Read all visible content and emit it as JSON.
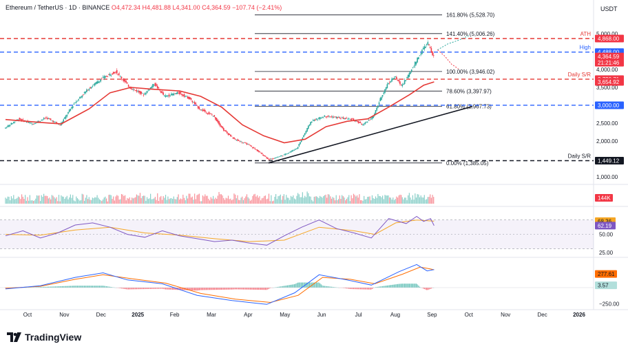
{
  "header": {
    "symbol": "Ethereum / TetherUS · 1D · BINANCE",
    "open": "O4,472.34",
    "high": "H4,481.88",
    "low": "L4,341.00",
    "close": "C4,364.59",
    "change": "−107.74 (−2.41%)"
  },
  "currency": "USDT",
  "branding": {
    "name": "TradingView"
  },
  "colors": {
    "up": "#26a69a",
    "down": "#f23645",
    "ma": "#e53935",
    "res_line": "#e53935",
    "sup_line": "#2962ff",
    "trend": "#131722",
    "rsi": "#7e57c2",
    "rsi_ma": "#f5a623",
    "macd": "#2962ff",
    "signal": "#ff6d00"
  },
  "chart_data": {
    "type": "line",
    "timeframe": "1D",
    "x_axis": {
      "tick_labels": [
        "Oct",
        "Nov",
        "Dec",
        "2025",
        "Feb",
        "Mar",
        "Apr",
        "May",
        "Jun",
        "Jul",
        "Aug",
        "Sep",
        "Oct",
        "Nov",
        "Dec",
        "2026"
      ]
    },
    "price_axis": {
      "tick_labels": [
        "5,000.00",
        "4,500.00",
        "4,000.00",
        "3,500.00",
        "3,000.00",
        "2,500.00",
        "2,000.00",
        "1,500.00",
        "1,000.00"
      ],
      "ylim": [
        900,
        5600
      ]
    },
    "price_series": [
      {
        "m": 0,
        "v": 2350
      },
      {
        "m": 0.4,
        "v": 2620
      },
      {
        "m": 0.8,
        "v": 2480
      },
      {
        "m": 1.2,
        "v": 2650
      },
      {
        "m": 1.6,
        "v": 2450
      },
      {
        "m": 2.0,
        "v": 3050
      },
      {
        "m": 2.4,
        "v": 3450
      },
      {
        "m": 2.8,
        "v": 3750
      },
      {
        "m": 3.2,
        "v": 3950
      },
      {
        "m": 3.6,
        "v": 3500
      },
      {
        "m": 4.0,
        "v": 3300
      },
      {
        "m": 4.3,
        "v": 3600
      },
      {
        "m": 4.6,
        "v": 3250
      },
      {
        "m": 5.0,
        "v": 3350
      },
      {
        "m": 5.3,
        "v": 3200
      },
      {
        "m": 5.6,
        "v": 2900
      },
      {
        "m": 6.0,
        "v": 2700
      },
      {
        "m": 6.3,
        "v": 2300
      },
      {
        "m": 6.6,
        "v": 2050
      },
      {
        "m": 7.0,
        "v": 1900
      },
      {
        "m": 7.3,
        "v": 1700
      },
      {
        "m": 7.6,
        "v": 1480
      },
      {
        "m": 8.0,
        "v": 1600
      },
      {
        "m": 8.4,
        "v": 1800
      },
      {
        "m": 8.8,
        "v": 2550
      },
      {
        "m": 9.2,
        "v": 2700
      },
      {
        "m": 9.6,
        "v": 2650
      },
      {
        "m": 10.0,
        "v": 2600
      },
      {
        "m": 10.3,
        "v": 2450
      },
      {
        "m": 10.6,
        "v": 2700
      },
      {
        "m": 10.8,
        "v": 3200
      },
      {
        "m": 11.0,
        "v": 3600
      },
      {
        "m": 11.2,
        "v": 3800
      },
      {
        "m": 11.4,
        "v": 3550
      },
      {
        "m": 11.6,
        "v": 3850
      },
      {
        "m": 11.8,
        "v": 4200
      },
      {
        "m": 12.0,
        "v": 4550
      },
      {
        "m": 12.15,
        "v": 4750
      },
      {
        "m": 12.3,
        "v": 4364.59
      }
    ],
    "moving_average": [
      {
        "m": 0,
        "v": 2600
      },
      {
        "m": 1.0,
        "v": 2520
      },
      {
        "m": 1.6,
        "v": 2480
      },
      {
        "m": 2.4,
        "v": 2900
      },
      {
        "m": 3.0,
        "v": 3350
      },
      {
        "m": 3.6,
        "v": 3500
      },
      {
        "m": 4.2,
        "v": 3450
      },
      {
        "m": 5.0,
        "v": 3400
      },
      {
        "m": 5.6,
        "v": 3250
      },
      {
        "m": 6.2,
        "v": 2950
      },
      {
        "m": 6.8,
        "v": 2450
      },
      {
        "m": 7.4,
        "v": 2150
      },
      {
        "m": 8.0,
        "v": 1950
      },
      {
        "m": 8.6,
        "v": 2050
      },
      {
        "m": 9.2,
        "v": 2400
      },
      {
        "m": 9.8,
        "v": 2550
      },
      {
        "m": 10.4,
        "v": 2620
      },
      {
        "m": 11.0,
        "v": 2950
      },
      {
        "m": 11.6,
        "v": 3300
      },
      {
        "m": 12.0,
        "v": 3560
      },
      {
        "m": 12.3,
        "v": 3654.92
      }
    ],
    "projection_up": [
      {
        "m": 12.4,
        "v": 4550
      },
      {
        "m": 12.7,
        "v": 4720
      },
      {
        "m": 13.0,
        "v": 4820
      },
      {
        "m": 13.3,
        "v": 4950
      }
    ],
    "projection_down": [
      {
        "m": 12.4,
        "v": 4550
      },
      {
        "m": 12.6,
        "v": 4380
      },
      {
        "m": 12.8,
        "v": 4150
      },
      {
        "m": 13.0,
        "v": 4020
      }
    ],
    "trendline": [
      {
        "m": 7.55,
        "v": 1385
      },
      {
        "m": 13.4,
        "v": 2967
      }
    ],
    "fibonacci": [
      {
        "label": "161.80% (5,528.70)",
        "v": 5528.7
      },
      {
        "label": "141.40% (5,006.26)",
        "v": 5006.26
      },
      {
        "label": "100.00% (3,946.02)",
        "v": 3946.02
      },
      {
        "label": "78.60% (3,397.97)",
        "v": 3397.97
      },
      {
        "label": "61.80% (2,967.73)",
        "v": 2967.73
      },
      {
        "label": "0.00% (1,385.05)",
        "v": 1385.05
      }
    ],
    "levels": [
      {
        "label": "ATH",
        "v": 4868,
        "color": "#e53935",
        "style": "dashed"
      },
      {
        "label": "High",
        "v": 4488,
        "color": "#2962ff",
        "style": "dashed"
      },
      {
        "label": "Daily S/R",
        "v": 3730.71,
        "color": "#e53935",
        "style": "dashed"
      },
      {
        "label": "",
        "v": 3000,
        "color": "#2962ff",
        "style": "dashed"
      },
      {
        "label": "Daily S/R",
        "v": 1449.12,
        "color": "#131722",
        "style": "dashed"
      }
    ],
    "price_badges": [
      {
        "text": "4,868.00",
        "v": 4868,
        "bg": "#f23645",
        "fg": "#ffffff"
      },
      {
        "text": "4,488.00",
        "v": 4488,
        "bg": "#2962ff",
        "fg": "#ffffff"
      },
      {
        "text": "4,364.59",
        "v": 4364.59,
        "bg": "#f23645",
        "fg": "#ffffff",
        "sub": "21:21:46"
      },
      {
        "text": "3,730.71",
        "v": 3730.71,
        "bg": "#f23645",
        "fg": "#ffffff"
      },
      {
        "text": "3,654.92",
        "v": 3654.92,
        "bg": "#f23645",
        "fg": "#ffffff"
      },
      {
        "text": "3,000.00",
        "v": 3000,
        "bg": "#2962ff",
        "fg": "#ffffff"
      },
      {
        "text": "1,449.12",
        "v": 1449.12,
        "bg": "#131722",
        "fg": "#ffffff"
      }
    ],
    "volume": {
      "badge": "144K"
    },
    "rsi": {
      "ylim": [
        20,
        85
      ],
      "bands": [
        70,
        30
      ],
      "tick_labels": [
        {
          "text": "50.00",
          "v": 50
        },
        {
          "text": "25.00",
          "v": 25
        }
      ],
      "badges": [
        {
          "text": "68.36",
          "v": 68.36,
          "bg": "#f5a623",
          "fg": "#131722"
        },
        {
          "text": "62.19",
          "v": 62.19,
          "bg": "#7e57c2",
          "fg": "#ffffff"
        }
      ],
      "series": [
        {
          "m": 0,
          "v": 48
        },
        {
          "m": 0.5,
          "v": 55
        },
        {
          "m": 1.0,
          "v": 45
        },
        {
          "m": 1.5,
          "v": 52
        },
        {
          "m": 2.0,
          "v": 63
        },
        {
          "m": 2.5,
          "v": 66
        },
        {
          "m": 3.0,
          "v": 60
        },
        {
          "m": 3.5,
          "v": 50
        },
        {
          "m": 4.0,
          "v": 46
        },
        {
          "m": 4.5,
          "v": 55
        },
        {
          "m": 5.0,
          "v": 48
        },
        {
          "m": 5.5,
          "v": 44
        },
        {
          "m": 6.0,
          "v": 40
        },
        {
          "m": 6.5,
          "v": 42
        },
        {
          "m": 7.0,
          "v": 38
        },
        {
          "m": 7.5,
          "v": 35
        },
        {
          "m": 8.0,
          "v": 48
        },
        {
          "m": 8.5,
          "v": 60
        },
        {
          "m": 9.0,
          "v": 70
        },
        {
          "m": 9.5,
          "v": 58
        },
        {
          "m": 10.0,
          "v": 52
        },
        {
          "m": 10.5,
          "v": 45
        },
        {
          "m": 11.0,
          "v": 72
        },
        {
          "m": 11.5,
          "v": 65
        },
        {
          "m": 11.8,
          "v": 75
        },
        {
          "m": 12.0,
          "v": 68
        },
        {
          "m": 12.2,
          "v": 72
        },
        {
          "m": 12.3,
          "v": 62.19
        }
      ],
      "ma": [
        {
          "m": 0,
          "v": 50
        },
        {
          "m": 1.0,
          "v": 49
        },
        {
          "m": 2.0,
          "v": 56
        },
        {
          "m": 3.0,
          "v": 60
        },
        {
          "m": 4.0,
          "v": 52
        },
        {
          "m": 5.0,
          "v": 49
        },
        {
          "m": 6.0,
          "v": 44
        },
        {
          "m": 7.0,
          "v": 40
        },
        {
          "m": 8.0,
          "v": 42
        },
        {
          "m": 9.0,
          "v": 60
        },
        {
          "m": 10.0,
          "v": 55
        },
        {
          "m": 10.6,
          "v": 50
        },
        {
          "m": 11.2,
          "v": 66
        },
        {
          "m": 11.8,
          "v": 70
        },
        {
          "m": 12.3,
          "v": 68.36
        }
      ]
    },
    "macd": {
      "ylim": [
        -300,
        450
      ],
      "tick_labels": [
        {
          "text": "−250.00",
          "v": -250
        }
      ],
      "badges": [
        {
          "text": "277.61",
          "v": 277.61,
          "bg": "#ff6d00",
          "fg": "#131722"
        },
        {
          "text": "3.57",
          "v": 3.57,
          "bg": "#b2dfdb",
          "fg": "#131722"
        }
      ],
      "macd_line": [
        {
          "m": 0,
          "v": -20
        },
        {
          "m": 1.0,
          "v": 30
        },
        {
          "m": 2.0,
          "v": 160
        },
        {
          "m": 2.8,
          "v": 230
        },
        {
          "m": 3.5,
          "v": 120
        },
        {
          "m": 4.5,
          "v": 60
        },
        {
          "m": 5.5,
          "v": -120
        },
        {
          "m": 6.5,
          "v": -200
        },
        {
          "m": 7.5,
          "v": -260
        },
        {
          "m": 8.3,
          "v": -80
        },
        {
          "m": 9.0,
          "v": 200
        },
        {
          "m": 9.8,
          "v": 120
        },
        {
          "m": 10.5,
          "v": 40
        },
        {
          "m": 11.3,
          "v": 250
        },
        {
          "m": 11.8,
          "v": 360
        },
        {
          "m": 12.1,
          "v": 260
        },
        {
          "m": 12.3,
          "v": 281
        }
      ],
      "signal_line": [
        {
          "m": 0,
          "v": -10
        },
        {
          "m": 1.0,
          "v": 20
        },
        {
          "m": 2.0,
          "v": 130
        },
        {
          "m": 2.8,
          "v": 200
        },
        {
          "m": 3.6,
          "v": 140
        },
        {
          "m": 4.6,
          "v": 70
        },
        {
          "m": 5.6,
          "v": -90
        },
        {
          "m": 6.6,
          "v": -180
        },
        {
          "m": 7.6,
          "v": -230
        },
        {
          "m": 8.4,
          "v": -120
        },
        {
          "m": 9.1,
          "v": 160
        },
        {
          "m": 9.9,
          "v": 130
        },
        {
          "m": 10.6,
          "v": 60
        },
        {
          "m": 11.4,
          "v": 210
        },
        {
          "m": 11.9,
          "v": 320
        },
        {
          "m": 12.2,
          "v": 290
        },
        {
          "m": 12.3,
          "v": 277.61
        }
      ]
    }
  }
}
